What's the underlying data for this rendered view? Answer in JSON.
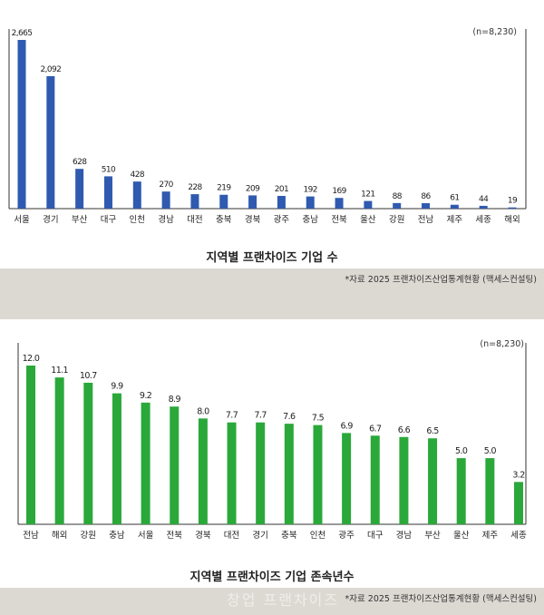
{
  "chart_data": [
    {
      "type": "bar",
      "title": "지역별 프랜차이즈 기업 수",
      "note": "(n=8,230)",
      "source": "*자료 2025 프랜차이즈산업통계현황 (맥세스컨설팅)",
      "categories": [
        "서울",
        "경기",
        "부산",
        "대구",
        "인천",
        "경남",
        "대전",
        "충북",
        "경북",
        "광주",
        "충남",
        "전북",
        "울산",
        "강원",
        "전남",
        "제주",
        "세종",
        "해외"
      ],
      "values": [
        2665,
        2092,
        628,
        510,
        428,
        270,
        228,
        219,
        209,
        201,
        192,
        169,
        121,
        88,
        86,
        61,
        44,
        19
      ],
      "value_labels": [
        "2,665",
        "2,092",
        "628",
        "510",
        "428",
        "270",
        "228",
        "219",
        "209",
        "201",
        "192",
        "169",
        "121",
        "88",
        "86",
        "61",
        "44",
        "19"
      ],
      "ylim": [
        0,
        2665
      ],
      "color": "#2f5ab0"
    },
    {
      "type": "bar",
      "title": "지역별 프랜차이즈 기업 존속년수",
      "note": "(n=8,230)",
      "source": "*자료 2025 프랜차이즈산업통계현황 (맥세스컨설팅)",
      "categories": [
        "전남",
        "해외",
        "강원",
        "충남",
        "서울",
        "전북",
        "경북",
        "대전",
        "경기",
        "충북",
        "인천",
        "광주",
        "대구",
        "경남",
        "부산",
        "울산",
        "제주",
        "세종"
      ],
      "values": [
        12.0,
        11.1,
        10.7,
        9.9,
        9.2,
        8.9,
        8.0,
        7.7,
        7.7,
        7.6,
        7.5,
        6.9,
        6.7,
        6.6,
        6.5,
        5.0,
        5.0,
        3.2
      ],
      "value_labels": [
        "12.0",
        "11.1",
        "10.7",
        "9.9",
        "9.2",
        "8.9",
        "8.0",
        "7.7",
        "7.7",
        "7.6",
        "7.5",
        "6.9",
        "6.7",
        "6.6",
        "6.5",
        "5.0",
        "5.0",
        "3.2"
      ],
      "ylim": [
        0,
        12.0
      ],
      "color": "#2aa83a"
    }
  ],
  "watermark": "창업 프랜차이즈"
}
